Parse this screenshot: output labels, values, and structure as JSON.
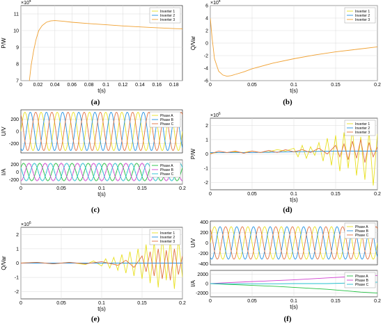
{
  "chart_data": [
    {
      "id": "a",
      "type": "line",
      "caption": "(a)",
      "xlabel": "t(s)",
      "ylabel": "P/W",
      "exponent": "×10",
      "exponent_power": "4",
      "xlim": [
        0,
        0.19
      ],
      "ylim": [
        7,
        11.5
      ],
      "xticks": [
        0,
        0.02,
        0.04,
        0.06,
        0.08,
        0.1,
        0.12,
        0.14,
        0.16,
        0.18
      ],
      "xtick_labels": [
        "0",
        "0.02",
        "0.04",
        "0.06",
        "0.08",
        "0.1",
        "0.12",
        "0.14",
        "0.16",
        "0.18"
      ],
      "yticks": [
        7,
        8,
        9,
        10,
        11
      ],
      "ytick_labels": [
        "7",
        "8",
        "9",
        "10",
        "11"
      ],
      "legend": [
        "Inverter 1",
        "Inverter 2",
        "Inverter 3"
      ],
      "legend_position": "top-right",
      "series": [
        {
          "name": "Inverter 3",
          "color": "#F0A030",
          "x": [
            0.01,
            0.012,
            0.015,
            0.018,
            0.021,
            0.025,
            0.03,
            0.035,
            0.04,
            0.05,
            0.06,
            0.08,
            0.1,
            0.12,
            0.14,
            0.16,
            0.19
          ],
          "y": [
            7.0,
            7.9,
            8.8,
            9.5,
            10.0,
            10.3,
            10.5,
            10.58,
            10.6,
            10.56,
            10.5,
            10.42,
            10.35,
            10.28,
            10.22,
            10.17,
            10.1
          ]
        }
      ]
    },
    {
      "id": "b",
      "type": "line",
      "caption": "(b)",
      "xlabel": "t(s)",
      "ylabel": "Q/Var",
      "exponent": "×10",
      "exponent_power": "4",
      "xlim": [
        0,
        0.2
      ],
      "ylim": [
        -6,
        6
      ],
      "xticks": [
        0,
        0.05,
        0.1,
        0.15,
        0.2
      ],
      "xtick_labels": [
        "0",
        "0.05",
        "0.1",
        "0.15",
        "0.2"
      ],
      "yticks": [
        -6,
        -4,
        -2,
        0,
        2,
        4,
        6
      ],
      "ytick_labels": [
        "-6",
        "-4",
        "-2",
        "0",
        "2",
        "4",
        "6"
      ],
      "legend": [
        "Inverter 1",
        "Inverter 2",
        "Inverter 3"
      ],
      "legend_position": "top-right",
      "series": [
        {
          "name": "Inverter 3",
          "color": "#F0A030",
          "x": [
            0,
            0.002,
            0.005,
            0.01,
            0.015,
            0.02,
            0.025,
            0.03,
            0.04,
            0.05,
            0.075,
            0.1,
            0.125,
            0.15,
            0.175,
            0.2
          ],
          "y": [
            4.0,
            1.0,
            -2.5,
            -4.5,
            -5.1,
            -5.3,
            -5.2,
            -5.0,
            -4.6,
            -4.1,
            -3.2,
            -2.5,
            -1.9,
            -1.4,
            -1.0,
            -0.6
          ]
        }
      ]
    },
    {
      "id": "c_top",
      "type": "line",
      "caption": "(c)",
      "xlabel": "",
      "ylabel": "U/V",
      "xlim": [
        0,
        0.2
      ],
      "ylim": [
        -350,
        350
      ],
      "yticks": [
        -200,
        0,
        200
      ],
      "ytick_labels": [
        "-200",
        "0",
        "200"
      ],
      "legend": [
        "Phase A",
        "Phase B",
        "Phase C"
      ],
      "legend_position": "top-right",
      "waveform": {
        "frequency_hz": 50,
        "amplitude": 311,
        "shape": "three-phase"
      },
      "series": [
        {
          "name": "Phase A",
          "color": "#E8E020",
          "phase_deg": 0
        },
        {
          "name": "Phase B",
          "color": "#2090E0",
          "phase_deg": -120
        },
        {
          "name": "Phase C",
          "color": "#E07040",
          "phase_deg": 120
        }
      ]
    },
    {
      "id": "c_bottom",
      "type": "line",
      "caption": "",
      "xlabel": "t(s)",
      "ylabel": "I/A",
      "xlim": [
        0,
        0.2
      ],
      "ylim": [
        -320,
        320
      ],
      "xticks": [
        0,
        0.05,
        0.1,
        0.15,
        0.2
      ],
      "xtick_labels": [
        "0",
        "0.05",
        "0.1",
        "0.15",
        "0.2"
      ],
      "yticks": [
        -200,
        0,
        200
      ],
      "ytick_labels": [
        "-200",
        "0",
        "200"
      ],
      "legend": [
        "Phase A",
        "Phase B",
        "Phase C"
      ],
      "legend_position": "top-right",
      "waveform": {
        "frequency_hz": 50,
        "amplitude": 230,
        "shape": "three-phase"
      },
      "series": [
        {
          "name": "Phase A",
          "color": "#20C040",
          "phase_deg": 30
        },
        {
          "name": "Phase B",
          "color": "#D040D0",
          "phase_deg": -90
        },
        {
          "name": "Phase C",
          "color": "#20C0D0",
          "phase_deg": 150
        }
      ]
    },
    {
      "id": "d",
      "type": "line",
      "caption": "(d)",
      "xlabel": "t(s)",
      "ylabel": "P/W",
      "exponent": "×10",
      "exponent_power": "6",
      "xlim": [
        0,
        0.2
      ],
      "ylim": [
        -2.5,
        2.5
      ],
      "xticks": [
        0,
        0.05,
        0.1,
        0.15,
        0.2
      ],
      "xtick_labels": [
        "0",
        "0.05",
        "0.1",
        "0.15",
        "0.2"
      ],
      "yticks": [
        -2,
        -1,
        0,
        1,
        2
      ],
      "ytick_labels": [
        "-2",
        "-1",
        "0",
        "1",
        "2"
      ],
      "legend": [
        "Inverter 1",
        "Inverter 2",
        "Inverter 3"
      ],
      "legend_position": "top-right",
      "series": [
        {
          "name": "Inverter 1",
          "color": "#E8E020",
          "x": [
            0,
            0.01,
            0.02,
            0.03,
            0.04,
            0.05,
            0.06,
            0.07,
            0.08,
            0.09,
            0.1,
            0.105,
            0.11,
            0.115,
            0.12,
            0.125,
            0.13,
            0.135,
            0.14,
            0.145,
            0.15,
            0.155,
            0.16,
            0.165,
            0.17,
            0.175,
            0.18,
            0.185,
            0.19,
            0.195,
            0.2
          ],
          "y": [
            0.05,
            0.1,
            0.1,
            0.15,
            0.1,
            0.2,
            0.1,
            0.15,
            0.3,
            0.2,
            0.4,
            -0.2,
            0.6,
            -0.3,
            0.5,
            -0.1,
            0.8,
            -0.5,
            1.1,
            -0.8,
            1.3,
            -1.2,
            1.5,
            -1.0,
            1.8,
            -1.5,
            1.2,
            -1.8,
            1.6,
            -2.2,
            1.4
          ]
        },
        {
          "name": "Inverter 2",
          "color": "#2090E0",
          "x": [
            0,
            0.05,
            0.1,
            0.15,
            0.2
          ],
          "y": [
            0.1,
            0.1,
            0.15,
            0.2,
            0.2
          ]
        },
        {
          "name": "Inverter 3",
          "color": "#E07040",
          "x": [
            0,
            0.01,
            0.02,
            0.03,
            0.04,
            0.05,
            0.06,
            0.07,
            0.08,
            0.09,
            0.1,
            0.11,
            0.12,
            0.13,
            0.14,
            0.15,
            0.155,
            0.16,
            0.165,
            0.17,
            0.175,
            0.18,
            0.185,
            0.19,
            0.195,
            0.2
          ],
          "y": [
            0.0,
            0.2,
            0.1,
            0.2,
            0.05,
            0.2,
            0.1,
            0.25,
            0.1,
            0.3,
            0.15,
            0.3,
            0.1,
            0.4,
            0.0,
            0.6,
            -0.2,
            0.7,
            -0.4,
            0.9,
            -0.3,
            1.0,
            -0.6,
            0.8,
            -0.2,
            0.5
          ]
        }
      ]
    },
    {
      "id": "e",
      "type": "line",
      "caption": "(e)",
      "xlabel": "t(s)",
      "ylabel": "Q/Var",
      "exponent": "×10",
      "exponent_power": "6",
      "xlim": [
        0,
        0.2
      ],
      "ylim": [
        -2.5,
        2.5
      ],
      "xticks": [
        0,
        0.05,
        0.1,
        0.15,
        0.2
      ],
      "xtick_labels": [
        "0",
        "0.05",
        "0.1",
        "0.15",
        "0.2"
      ],
      "yticks": [
        -2,
        -1,
        0,
        1,
        2
      ],
      "ytick_labels": [
        "-2",
        "-1",
        "0",
        "1",
        "2"
      ],
      "legend": [
        "Inverter 1",
        "Inverter 2",
        "Inverter 3"
      ],
      "legend_position": "top-right",
      "series": [
        {
          "name": "Inverter 1",
          "color": "#E8E020",
          "x": [
            0,
            0.02,
            0.04,
            0.06,
            0.08,
            0.09,
            0.1,
            0.105,
            0.11,
            0.115,
            0.12,
            0.125,
            0.13,
            0.135,
            0.14,
            0.145,
            0.15,
            0.155,
            0.16,
            0.165,
            0.17,
            0.175,
            0.18,
            0.185,
            0.19,
            0.195,
            0.2
          ],
          "y": [
            0.0,
            0.05,
            -0.05,
            0.05,
            -0.1,
            0.15,
            -0.2,
            0.3,
            -0.35,
            0.4,
            -0.5,
            0.6,
            -0.7,
            0.8,
            -0.9,
            1.0,
            -1.1,
            1.3,
            -1.4,
            1.5,
            -1.7,
            1.9,
            -1.2,
            1.6,
            -1.8,
            1.7,
            -1.0
          ]
        },
        {
          "name": "Inverter 2",
          "color": "#2090E0",
          "x": [
            0,
            0.1,
            0.2
          ],
          "y": [
            0.0,
            0.0,
            0.0
          ]
        },
        {
          "name": "Inverter 3",
          "color": "#E07040",
          "x": [
            0,
            0.02,
            0.04,
            0.06,
            0.08,
            0.1,
            0.12,
            0.13,
            0.14,
            0.15,
            0.155,
            0.16,
            0.165,
            0.17,
            0.175,
            0.18,
            0.185,
            0.19,
            0.195,
            0.2
          ],
          "y": [
            0.0,
            0.05,
            -0.05,
            0.05,
            -0.05,
            0.1,
            -0.15,
            0.2,
            -0.3,
            0.5,
            -0.6,
            0.8,
            -0.9,
            1.0,
            -1.1,
            0.9,
            -1.2,
            1.0,
            -0.8,
            0.5
          ]
        }
      ]
    },
    {
      "id": "f_top",
      "type": "line",
      "caption": "(f)",
      "xlabel": "",
      "ylabel": "U/V",
      "xlim": [
        0,
        0.2
      ],
      "ylim": [
        -420,
        420
      ],
      "yticks": [
        -400,
        -200,
        0,
        200,
        400
      ],
      "ytick_labels": [
        "-400",
        "-200",
        "0",
        "200",
        "400"
      ],
      "legend": [
        "Phase A",
        "Phase B",
        "Phase C"
      ],
      "legend_position": "top-right",
      "waveform": {
        "frequency_hz": 50,
        "amplitude": 311,
        "shape": "three-phase"
      },
      "series": [
        {
          "name": "Phase A",
          "color": "#E8E020",
          "phase_deg": 0
        },
        {
          "name": "Phase B",
          "color": "#2090E0",
          "phase_deg": -120
        },
        {
          "name": "Phase C",
          "color": "#E07040",
          "phase_deg": 120
        }
      ]
    },
    {
      "id": "f_bottom",
      "type": "line",
      "caption": "",
      "xlabel": "t(s)",
      "ylabel": "I/A",
      "xlim": [
        0,
        0.2
      ],
      "ylim": [
        -2800,
        2800
      ],
      "xticks": [
        0,
        0.05,
        0.1,
        0.15,
        0.2
      ],
      "xtick_labels": [
        "0",
        "0.05",
        "0.1",
        "0.15",
        "0.2"
      ],
      "yticks": [
        -2000,
        0,
        2000
      ],
      "ytick_labels": [
        "-2000",
        "0",
        "2000"
      ],
      "legend": [
        "Phase A",
        "Phase B",
        "Phase C"
      ],
      "legend_position": "top-right",
      "series": [
        {
          "name": "Phase A",
          "color": "#20C040",
          "x": [
            0,
            0.02,
            0.04,
            0.06,
            0.08,
            0.1,
            0.12,
            0.14,
            0.16,
            0.18,
            0.2
          ],
          "y": [
            0,
            -150,
            -300,
            -450,
            -600,
            -800,
            -1000,
            -1200,
            -1500,
            -1800,
            -2000
          ]
        },
        {
          "name": "Phase B",
          "color": "#D040D0",
          "x": [
            0,
            0.02,
            0.04,
            0.06,
            0.08,
            0.1,
            0.12,
            0.14,
            0.16,
            0.18,
            0.2
          ],
          "y": [
            0,
            200,
            350,
            500,
            650,
            800,
            1000,
            1200,
            1400,
            1600,
            1700
          ]
        },
        {
          "name": "Phase C",
          "color": "#20C0D0",
          "x": [
            0,
            0.02,
            0.04,
            0.06,
            0.08,
            0.1,
            0.12,
            0.14,
            0.16,
            0.18,
            0.2
          ],
          "y": [
            0,
            -50,
            -50,
            -50,
            -50,
            0,
            0,
            0,
            100,
            200,
            300
          ]
        }
      ]
    }
  ]
}
